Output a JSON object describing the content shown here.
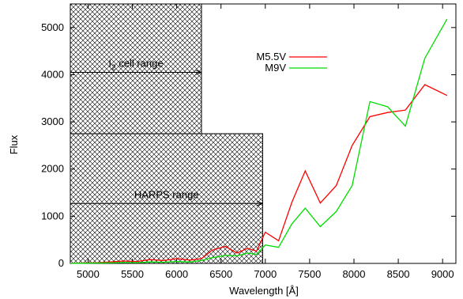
{
  "chart_data": {
    "type": "line",
    "title": "",
    "xlabel": "Wavelength [Å]",
    "ylabel": "Flux",
    "xlim": [
      4800,
      9150
    ],
    "ylim": [
      0,
      5500
    ],
    "x_ticks": [
      5000,
      5500,
      6000,
      6500,
      7000,
      7500,
      8000,
      8500,
      9000
    ],
    "y_ticks": [
      0,
      1000,
      2000,
      3000,
      4000,
      5000
    ],
    "grid": false,
    "legend_position": "top-center",
    "series": [
      {
        "name": "M5.5V",
        "color": "#ff0000",
        "x": [
          4800,
          4950,
          5100,
          5250,
          5400,
          5550,
          5700,
          5850,
          6000,
          6150,
          6280,
          6400,
          6550,
          6680,
          6800,
          6900,
          7000,
          7150,
          7300,
          7450,
          7620,
          7800,
          7980,
          8180,
          8380,
          8580,
          8800,
          9050
        ],
        "y": [
          0,
          10,
          15,
          30,
          50,
          40,
          80,
          60,
          100,
          70,
          100,
          280,
          360,
          220,
          320,
          260,
          660,
          480,
          1300,
          1960,
          1280,
          1650,
          2500,
          3110,
          3200,
          3250,
          3790,
          3560
        ]
      },
      {
        "name": "M9V",
        "color": "#00dd00",
        "x": [
          4800,
          4950,
          5100,
          5250,
          5400,
          5550,
          5700,
          5850,
          6000,
          6150,
          6280,
          6400,
          6550,
          6680,
          6800,
          6900,
          7000,
          7150,
          7300,
          7450,
          7620,
          7800,
          7980,
          8180,
          8380,
          8580,
          8800,
          9050
        ],
        "y": [
          0,
          5,
          8,
          12,
          18,
          15,
          30,
          25,
          40,
          30,
          60,
          120,
          170,
          160,
          220,
          190,
          390,
          340,
          840,
          1170,
          780,
          1100,
          1650,
          3430,
          3320,
          2910,
          4350,
          5180
        ]
      }
    ],
    "annotations": [
      {
        "label_main": "I",
        "label_sub": "2",
        "label_rest": " cell range",
        "x_start": 4800,
        "x_end": 6280,
        "y_top": 5500,
        "y_bottom": 2750,
        "arrow_y": 4050
      },
      {
        "label_main": "HARPS range",
        "x_start": 4800,
        "x_end": 6970,
        "y_top": 2750,
        "y_bottom": 0,
        "arrow_y": 1270
      }
    ]
  }
}
